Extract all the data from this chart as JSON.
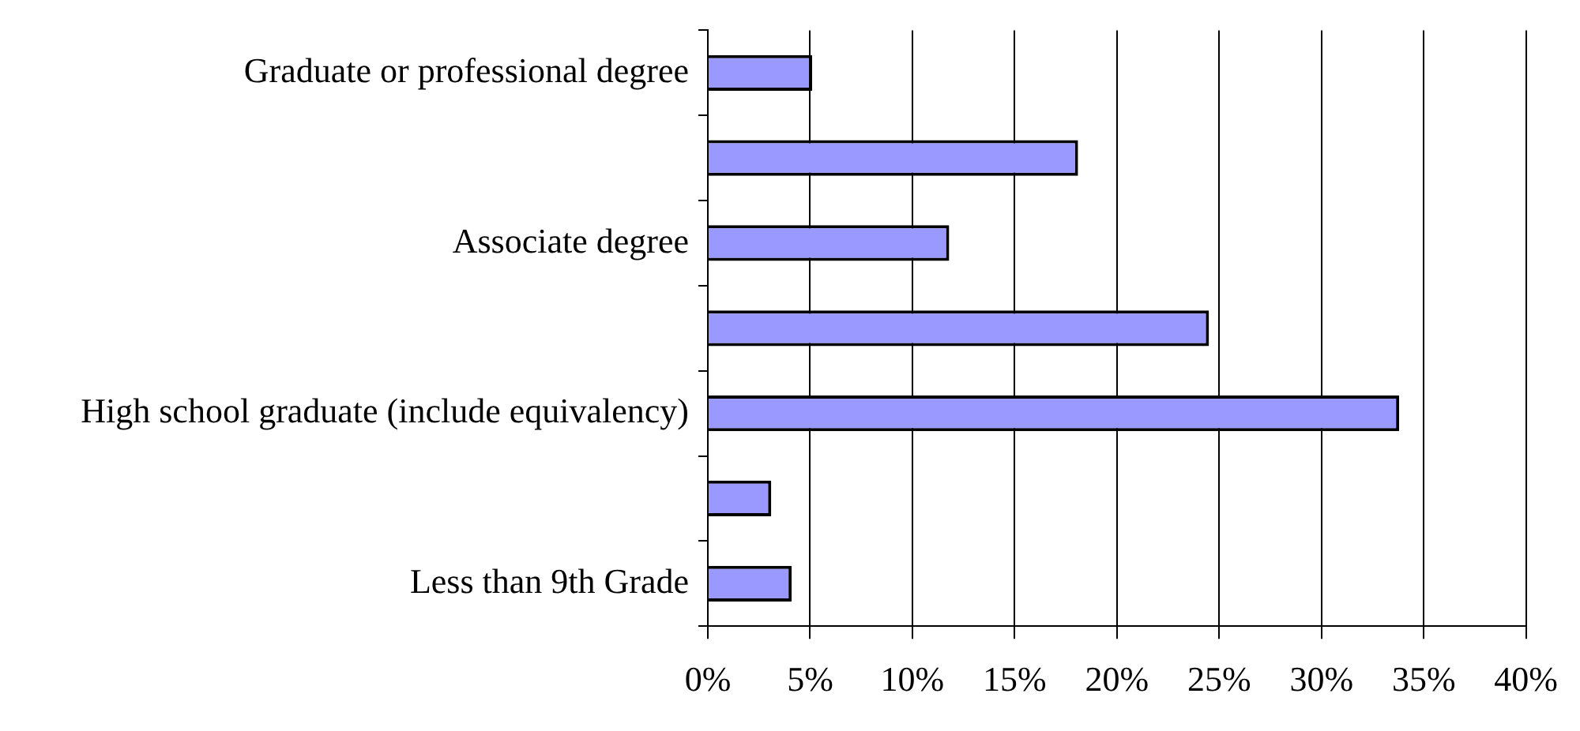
{
  "chart_data": {
    "type": "bar",
    "orientation": "horizontal",
    "categories": [
      "Graduate or professional degree",
      null,
      "Associate degree",
      null,
      "High school graduate (include equivalency)",
      null,
      "Less than 9th Grade"
    ],
    "values": [
      5.1,
      18.1,
      11.8,
      24.5,
      33.8,
      3.1,
      4.1
    ],
    "color": "#9999ff",
    "xlim": [
      0,
      40
    ],
    "xticks": [
      {
        "value": 0,
        "label": "0%"
      },
      {
        "value": 5,
        "label": "5%"
      },
      {
        "value": 10,
        "label": "10%"
      },
      {
        "value": 15,
        "label": "15%"
      },
      {
        "value": 20,
        "label": "20%"
      },
      {
        "value": 25,
        "label": "25%"
      },
      {
        "value": 30,
        "label": "30%"
      },
      {
        "value": 35,
        "label": "35%"
      },
      {
        "value": 40,
        "label": "40%"
      }
    ],
    "grid": "x",
    "legend": false
  }
}
